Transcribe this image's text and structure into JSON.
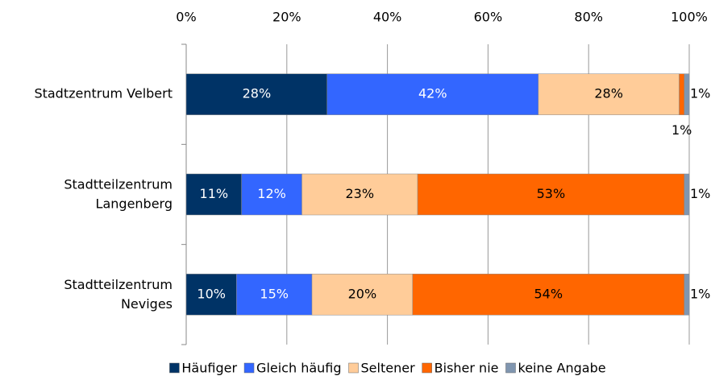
{
  "chart_data": {
    "type": "stacked_barh",
    "categories": [
      "Stadtzentrum Velbert",
      "Stadtteilzentrum Langenberg",
      "Stadtteilzentrum Neviges"
    ],
    "series": [
      {
        "name": "Häufiger",
        "color": "#003366",
        "values": [
          28,
          11,
          10
        ],
        "value_labels": [
          "28%",
          "11%",
          "10%"
        ]
      },
      {
        "name": "Gleich häufig",
        "color": "#3366ff",
        "values": [
          42,
          12,
          15
        ],
        "value_labels": [
          "42%",
          "12%",
          "15%"
        ]
      },
      {
        "name": "Seltener",
        "color": "#ffcc99",
        "values": [
          28,
          23,
          20
        ],
        "value_labels": [
          "28%",
          "23%",
          "20%"
        ]
      },
      {
        "name": "Bisher nie",
        "color": "#ff6600",
        "values": [
          1,
          53,
          54
        ],
        "value_labels": [
          "1%",
          "53%",
          "54%"
        ]
      },
      {
        "name": "keine Angabe",
        "color": "#8096b0",
        "values": [
          1,
          1,
          1
        ],
        "value_labels": [
          "1%",
          "1%",
          "1%"
        ]
      }
    ],
    "xlim": [
      0,
      100
    ],
    "xticks": [
      {
        "value": 0,
        "label": "0%"
      },
      {
        "value": 20,
        "label": "20%"
      },
      {
        "value": 40,
        "label": "40%"
      },
      {
        "value": 60,
        "label": "60%"
      },
      {
        "value": 80,
        "label": "80%"
      },
      {
        "value": 100,
        "label": "100%"
      }
    ],
    "grid": true,
    "legend": "bottom"
  }
}
